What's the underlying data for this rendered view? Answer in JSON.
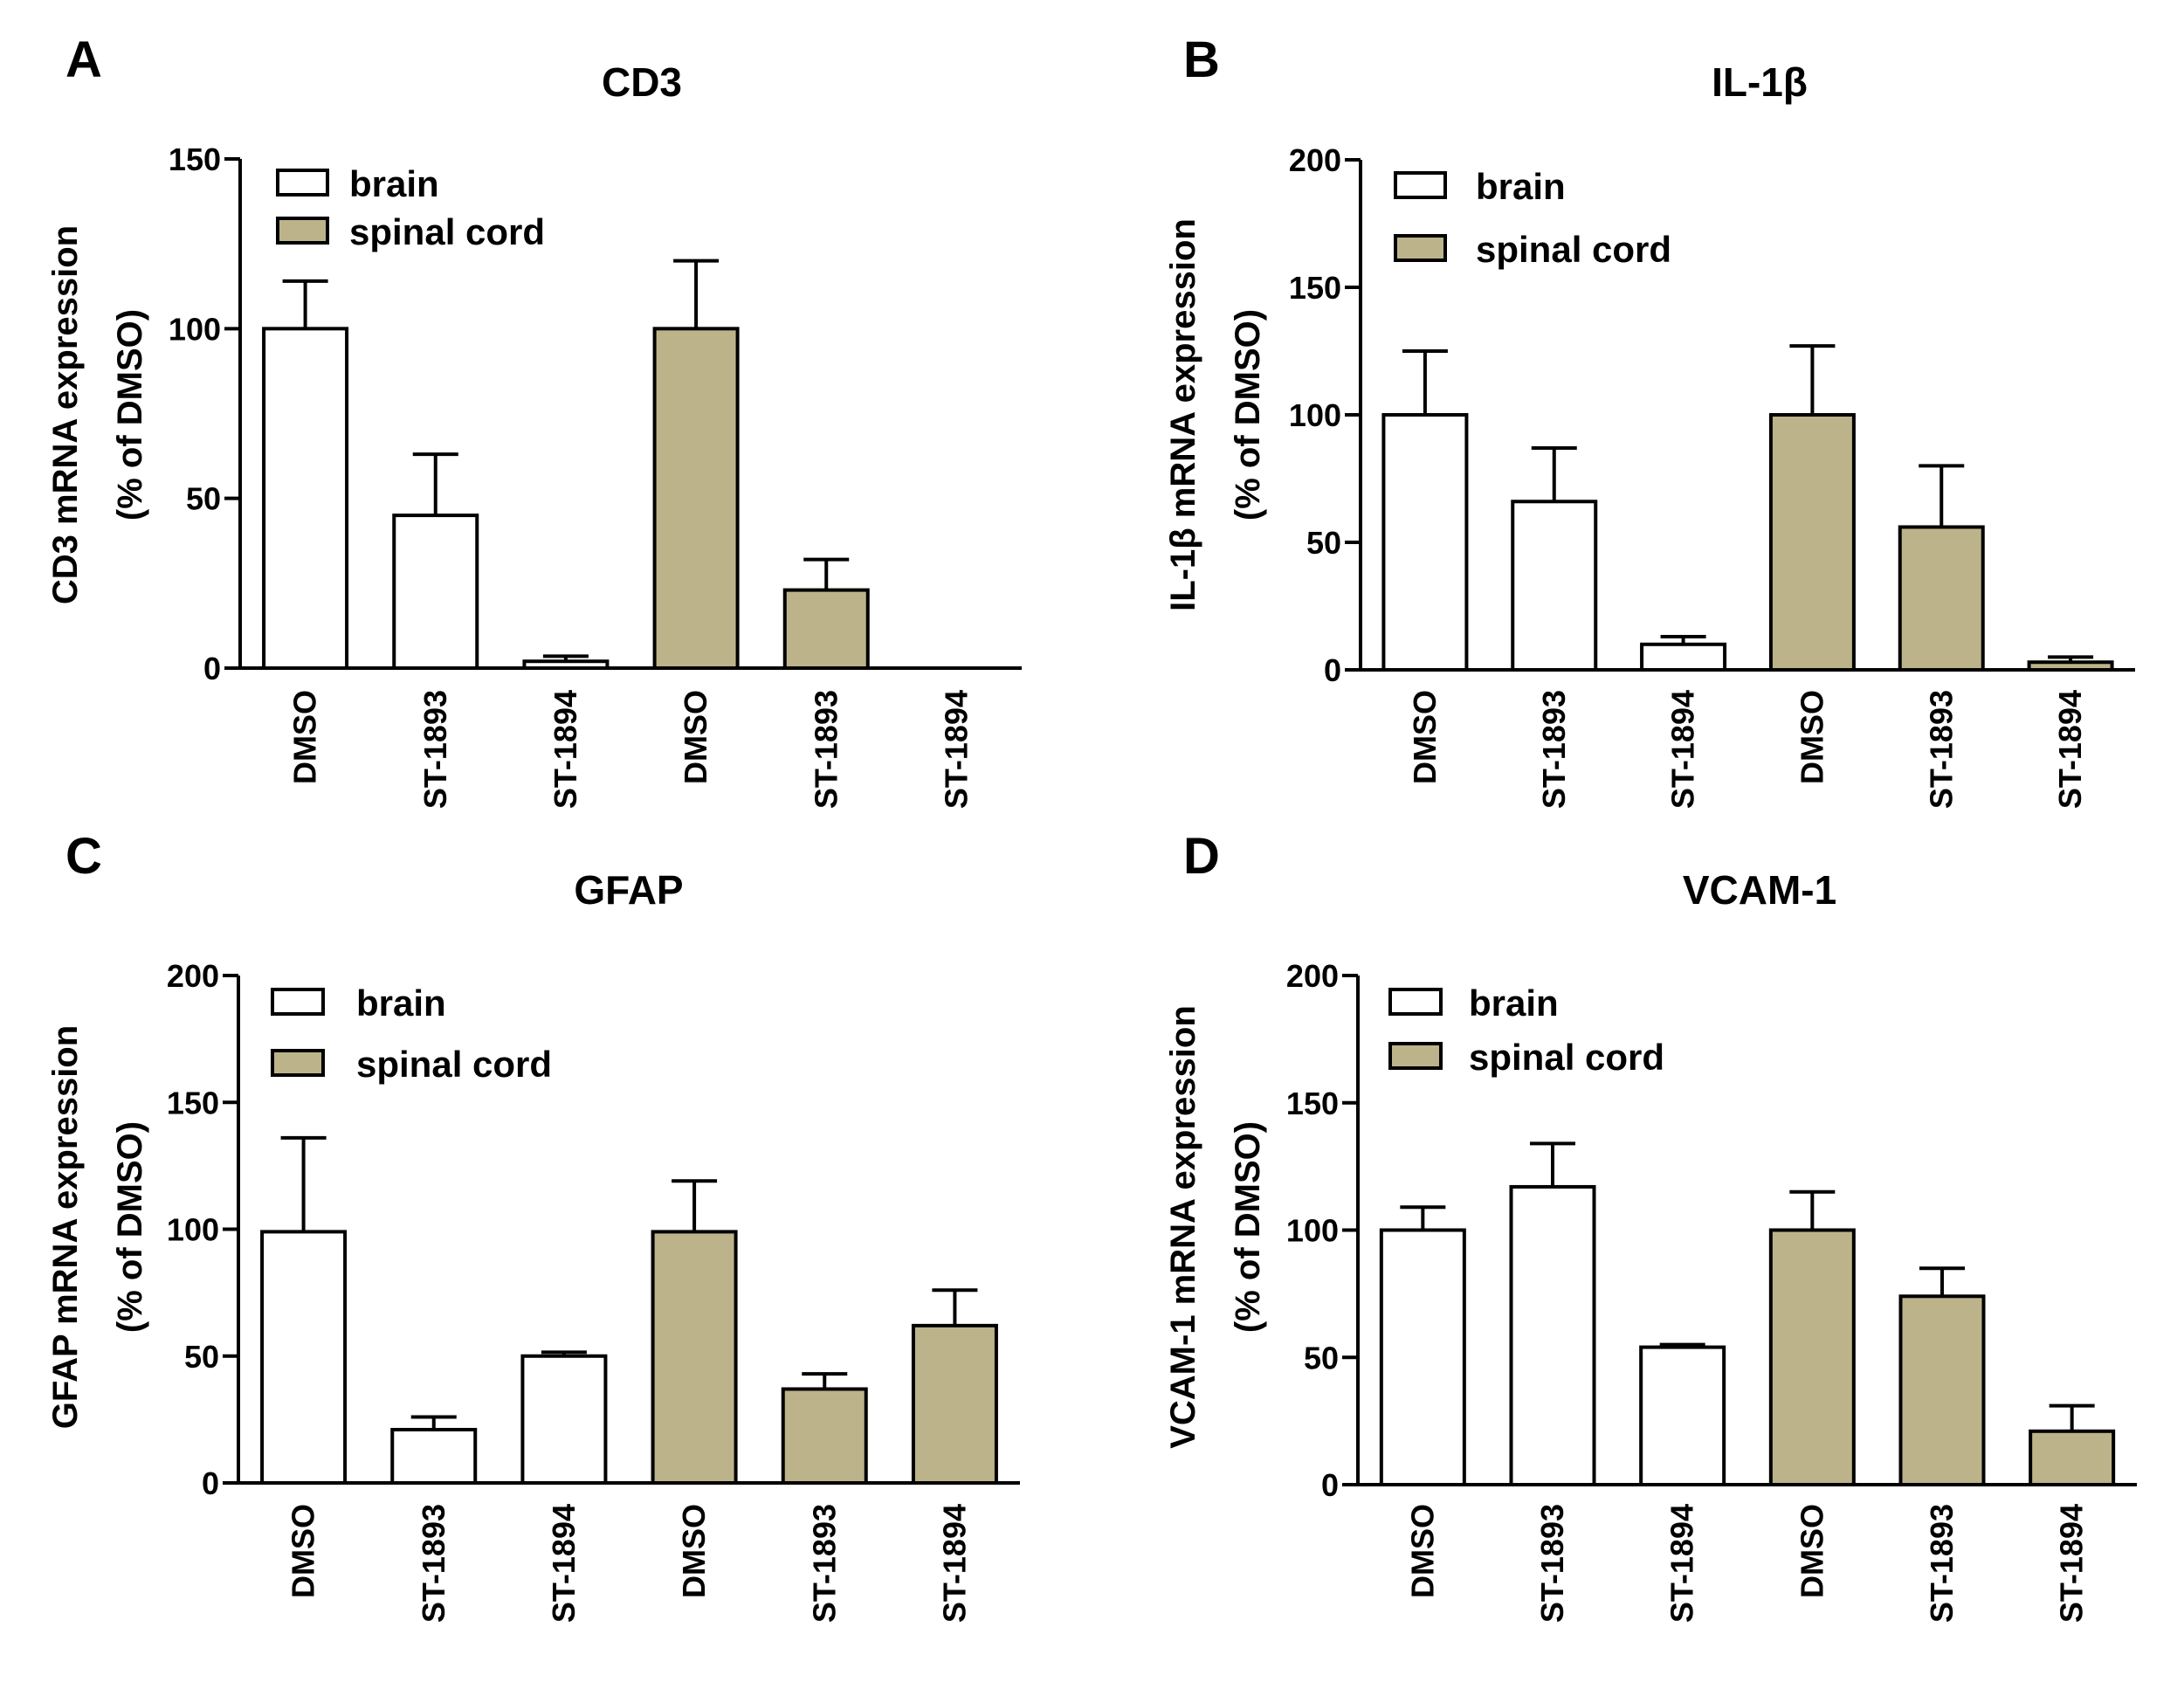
{
  "colors": {
    "brain": "#ffffff",
    "spinal_cord": "#bdb38a",
    "stroke": "#000000"
  },
  "legend": {
    "brain": "brain",
    "spinal_cord": "spinal cord"
  },
  "chart_data": [
    {
      "panel": "A",
      "type": "bar",
      "title": "CD3",
      "ylabel_line1": "CD3 mRNA expression",
      "ylabel_line2": "(% of DMSO)",
      "ylim": [
        0,
        150
      ],
      "yticks": [
        0,
        50,
        100,
        150
      ],
      "categories": [
        "DMSO",
        "ST-1893",
        "ST-1894",
        "DMSO",
        "ST-1893",
        "ST-1894"
      ],
      "groups": [
        "brain",
        "brain",
        "brain",
        "spinal_cord",
        "spinal_cord",
        "spinal_cord"
      ],
      "values": [
        100,
        45,
        2,
        100,
        23,
        0
      ],
      "errors": [
        14,
        18,
        1.5,
        20,
        9,
        0
      ]
    },
    {
      "panel": "B",
      "type": "bar",
      "title": "IL-1β",
      "ylabel_line1": "IL-1β mRNA expression",
      "ylabel_line2": "(% of DMSO)",
      "ylim": [
        0,
        200
      ],
      "yticks": [
        0,
        50,
        100,
        150,
        200
      ],
      "categories": [
        "DMSO",
        "ST-1893",
        "ST-1894",
        "DMSO",
        "ST-1893",
        "ST-1894"
      ],
      "groups": [
        "brain",
        "brain",
        "brain",
        "spinal_cord",
        "spinal_cord",
        "spinal_cord"
      ],
      "values": [
        100,
        66,
        10,
        100,
        56,
        3
      ],
      "errors": [
        25,
        21,
        3,
        27,
        24,
        2
      ]
    },
    {
      "panel": "C",
      "type": "bar",
      "title": "GFAP",
      "ylabel_line1": "GFAP mRNA expression",
      "ylabel_line2": "(% of DMSO)",
      "ylim": [
        0,
        200
      ],
      "yticks": [
        0,
        50,
        100,
        150,
        200
      ],
      "categories": [
        "DMSO",
        "ST-1893",
        "ST-1894",
        "DMSO",
        "ST-1893",
        "ST-1894"
      ],
      "groups": [
        "brain",
        "brain",
        "brain",
        "spinal_cord",
        "spinal_cord",
        "spinal_cord"
      ],
      "values": [
        99,
        21,
        50,
        99,
        37,
        62
      ],
      "errors": [
        37,
        5,
        1.5,
        20,
        6,
        14
      ]
    },
    {
      "panel": "D",
      "type": "bar",
      "title": "VCAM-1",
      "ylabel_line1": "VCAM-1 mRNA expression",
      "ylabel_line2": "(% of DMSO)",
      "ylim": [
        0,
        200
      ],
      "yticks": [
        0,
        50,
        100,
        150,
        200
      ],
      "categories": [
        "DMSO",
        "ST-1893",
        "ST-1894",
        "DMSO",
        "ST-1893",
        "ST-1894"
      ],
      "groups": [
        "brain",
        "brain",
        "brain",
        "spinal_cord",
        "spinal_cord",
        "spinal_cord"
      ],
      "values": [
        100,
        117,
        54,
        100,
        74,
        21
      ],
      "errors": [
        9,
        17,
        1,
        15,
        11,
        10
      ]
    }
  ]
}
